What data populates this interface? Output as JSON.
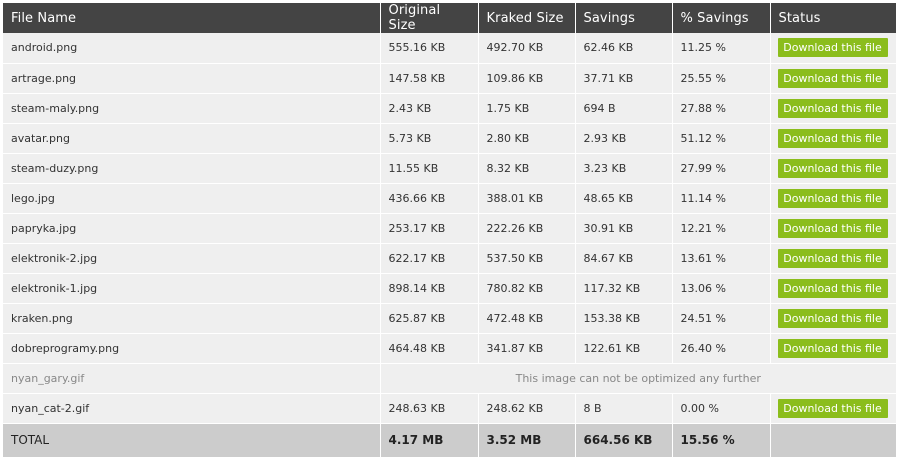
{
  "table": {
    "headers": [
      "File Name",
      "Original Size",
      "Kraked Size",
      "Savings",
      "% Savings",
      "Status"
    ],
    "download_label": "Download this file",
    "rows": [
      {
        "name": "android.png",
        "original": "555.16 KB",
        "kraked": "492.70 KB",
        "savings": "62.46 KB",
        "pct": "11.25 %"
      },
      {
        "name": "artrage.png",
        "original": "147.58 KB",
        "kraked": "109.86 KB",
        "savings": "37.71 KB",
        "pct": "25.55 %"
      },
      {
        "name": "steam-maly.png",
        "original": "2.43 KB",
        "kraked": "1.75 KB",
        "savings": "694 B",
        "pct": "27.88 %"
      },
      {
        "name": "avatar.png",
        "original": "5.73 KB",
        "kraked": "2.80 KB",
        "savings": "2.93 KB",
        "pct": "51.12 %"
      },
      {
        "name": "steam-duzy.png",
        "original": "11.55 KB",
        "kraked": "8.32 KB",
        "savings": "3.23 KB",
        "pct": "27.99 %"
      },
      {
        "name": "lego.jpg",
        "original": "436.66 KB",
        "kraked": "388.01 KB",
        "savings": "48.65 KB",
        "pct": "11.14 %"
      },
      {
        "name": "papryka.jpg",
        "original": "253.17 KB",
        "kraked": "222.26 KB",
        "savings": "30.91 KB",
        "pct": "12.21 %"
      },
      {
        "name": "elektronik-2.jpg",
        "original": "622.17 KB",
        "kraked": "537.50 KB",
        "savings": "84.67 KB",
        "pct": "13.61 %"
      },
      {
        "name": "elektronik-1.jpg",
        "original": "898.14 KB",
        "kraked": "780.82 KB",
        "savings": "117.32 KB",
        "pct": "13.06 %"
      },
      {
        "name": "kraken.png",
        "original": "625.87 KB",
        "kraked": "472.48 KB",
        "savings": "153.38 KB",
        "pct": "24.51 %"
      },
      {
        "name": "dobreprogramy.png",
        "original": "464.48 KB",
        "kraked": "341.87 KB",
        "savings": "122.61 KB",
        "pct": "26.40 %"
      }
    ],
    "not_optimized": {
      "name": "nyan_gary.gif",
      "message": "This image can not be optimized any further"
    },
    "last_row": {
      "name": "nyan_cat-2.gif",
      "original": "248.63 KB",
      "kraked": "248.62 KB",
      "savings": "8 B",
      "pct": "0.00 %"
    },
    "total": {
      "label": "TOTAL",
      "original": "4.17 MB",
      "kraked": "3.52 MB",
      "savings": "664.56 KB",
      "pct": "15.56 %"
    }
  },
  "colors": {
    "header_bg": "#444444",
    "row_bg": "#efefef",
    "total_bg": "#cccccc",
    "button_green": "#8bbd1c"
  }
}
